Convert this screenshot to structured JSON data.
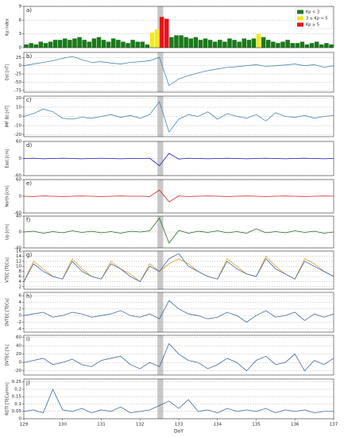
{
  "chart_data": [
    {
      "type": "bar",
      "panel_label": "a)",
      "ylabel": "Kp index",
      "xlim": [
        129,
        137
      ],
      "ylim": [
        0,
        9
      ],
      "yticks": [
        0,
        3,
        6,
        9
      ],
      "grid": true,
      "legend": "upper right",
      "highlight": [
        132.45,
        132.6
      ],
      "x": [
        129,
        129.125,
        129.25,
        129.375,
        129.5,
        129.625,
        129.75,
        129.875,
        130,
        130.125,
        130.25,
        130.375,
        130.5,
        130.625,
        130.75,
        130.875,
        131,
        131.125,
        131.25,
        131.375,
        131.5,
        131.625,
        131.75,
        131.875,
        132,
        132.125,
        132.25,
        132.375,
        132.5,
        132.625,
        132.75,
        132.875,
        133,
        133.125,
        133.25,
        133.375,
        133.5,
        133.625,
        133.75,
        133.875,
        134,
        134.125,
        134.25,
        134.375,
        134.5,
        134.625,
        134.75,
        134.875,
        135,
        135.125,
        135.25,
        135.375,
        135.5,
        135.625,
        135.75,
        135.875,
        136,
        136.125,
        136.25,
        136.375,
        136.5,
        136.625,
        136.75,
        136.875
      ],
      "series": [
        {
          "name": "Kp < 3",
          "color": "#1a7a1a",
          "values": [
            0.7,
            1,
            0.7,
            1.3,
            1,
            1.3,
            1.7,
            1.7,
            2,
            1.7,
            2,
            2.3,
            1.7,
            1.3,
            2,
            2.3,
            1.7,
            1.3,
            2,
            1.7,
            1.3,
            1,
            1.7,
            1.3,
            1.3,
            0.7,
            null,
            null,
            null,
            null,
            2.3,
            2.7,
            2.7,
            2.3,
            2,
            2.3,
            1.7,
            2,
            1.7,
            1.3,
            1.7,
            1.3,
            2,
            1.7,
            1.3,
            2,
            1.7,
            2,
            null,
            2.3,
            1.7,
            1.3,
            1,
            1.3,
            1.7,
            1,
            1,
            1.3,
            0.7,
            1,
            1.3,
            0.7,
            1,
            0.7
          ]
        },
        {
          "name": "3 ≤ Kp < 5",
          "color": "#f2ea1a",
          "values": [
            null,
            null,
            null,
            null,
            null,
            null,
            null,
            null,
            null,
            null,
            null,
            null,
            null,
            null,
            null,
            null,
            null,
            null,
            null,
            null,
            null,
            null,
            null,
            null,
            null,
            null,
            3.3,
            4,
            null,
            null,
            null,
            null,
            null,
            null,
            null,
            null,
            null,
            null,
            null,
            null,
            null,
            null,
            null,
            null,
            null,
            null,
            null,
            null,
            3,
            null,
            null,
            null,
            null,
            null,
            null,
            null,
            null,
            null,
            null,
            null,
            null,
            null,
            null,
            null
          ]
        },
        {
          "name": "Kp ≥ 5",
          "color": "#e8141a",
          "values": [
            null,
            null,
            null,
            null,
            null,
            null,
            null,
            null,
            null,
            null,
            null,
            null,
            null,
            null,
            null,
            null,
            null,
            null,
            null,
            null,
            null,
            null,
            null,
            null,
            null,
            null,
            null,
            null,
            6.7,
            6.3,
            null,
            null,
            null,
            null,
            null,
            null,
            null,
            null,
            null,
            null,
            null,
            null,
            null,
            null,
            null,
            null,
            null,
            null,
            null,
            null,
            null,
            null,
            null,
            null,
            null,
            null,
            null,
            null,
            null,
            null,
            null,
            null,
            null,
            null
          ]
        }
      ]
    },
    {
      "type": "line",
      "panel_label": "b)",
      "ylabel": "Dst [nT]",
      "xlim": [
        129,
        137
      ],
      "ylim": [
        -80,
        40
      ],
      "yticks": [
        -75,
        -50,
        -25,
        0,
        25
      ],
      "grid": true,
      "highlight": [
        132.45,
        132.6
      ],
      "color": "#4a86b8",
      "x": [
        129,
        129.25,
        129.5,
        129.75,
        130,
        130.25,
        130.5,
        130.75,
        131,
        131.25,
        131.5,
        131.75,
        132,
        132.25,
        132.5,
        132.75,
        133,
        133.25,
        133.5,
        133.75,
        134,
        134.25,
        134.5,
        134.75,
        135,
        135.25,
        135.5,
        135.75,
        136,
        136.25,
        136.5,
        136.75,
        137
      ],
      "values": [
        0,
        5,
        10,
        15,
        22,
        28,
        18,
        10,
        12,
        8,
        5,
        10,
        12,
        15,
        25,
        -60,
        -40,
        -30,
        -22,
        -15,
        -10,
        -5,
        -3,
        0,
        3,
        -2,
        0,
        2,
        5,
        0,
        3,
        -5,
        0
      ]
    },
    {
      "type": "line",
      "panel_label": "c)",
      "ylabel": "IMF Bz [nT]",
      "xlim": [
        129,
        137
      ],
      "ylim": [
        -22,
        22
      ],
      "yticks": [
        -20,
        -10,
        0,
        10,
        20
      ],
      "grid": true,
      "highlight": [
        132.45,
        132.6
      ],
      "color": "#4a86b8",
      "x": [
        129,
        129.25,
        129.5,
        129.75,
        130,
        130.25,
        130.5,
        130.75,
        131,
        131.25,
        131.5,
        131.75,
        132,
        132.25,
        132.5,
        132.75,
        133,
        133.25,
        133.5,
        133.75,
        134,
        134.25,
        134.5,
        134.75,
        135,
        135.25,
        135.5,
        135.75,
        136,
        136.25,
        136.5,
        136.75,
        137
      ],
      "values": [
        0,
        3,
        8,
        5,
        -2,
        -3,
        -1,
        -2,
        0,
        2,
        -1,
        1,
        -2,
        2,
        16,
        -17,
        -3,
        2,
        0,
        5,
        -3,
        3,
        0,
        -2,
        2,
        -5,
        4,
        0,
        -1,
        1,
        -2,
        0,
        1
      ]
    },
    {
      "type": "line",
      "panel_label": "d)",
      "ylabel": "East [cm]",
      "xlim": [
        129,
        137
      ],
      "ylim": [
        -60,
        60
      ],
      "yticks": [
        -60,
        0,
        60
      ],
      "grid": true,
      "highlight": [
        132.45,
        132.6
      ],
      "color": "#1414c0",
      "x": [
        129,
        129.25,
        129.5,
        129.75,
        130,
        130.25,
        130.5,
        130.75,
        131,
        131.25,
        131.5,
        131.75,
        132,
        132.25,
        132.5,
        132.75,
        133,
        133.25,
        133.5,
        133.75,
        134,
        134.25,
        134.5,
        134.75,
        135,
        135.25,
        135.5,
        135.75,
        136,
        136.25,
        136.5,
        136.75,
        137
      ],
      "values": [
        0,
        1,
        -1,
        0,
        1,
        0,
        -1,
        0,
        1,
        0,
        -1,
        0,
        0,
        1,
        -25,
        18,
        -2,
        1,
        0,
        -1,
        0,
        1,
        0,
        -1,
        0,
        1,
        0,
        -1,
        0,
        1,
        0,
        -1,
        0
      ]
    },
    {
      "type": "line",
      "panel_label": "e)",
      "ylabel": "North [cm]",
      "xlim": [
        129,
        137
      ],
      "ylim": [
        -60,
        60
      ],
      "yticks": [
        -60,
        0,
        60
      ],
      "grid": true,
      "highlight": [
        132.45,
        132.6
      ],
      "color": "#e02020",
      "x": [
        129,
        129.25,
        129.5,
        129.75,
        130,
        130.25,
        130.5,
        130.75,
        131,
        131.25,
        131.5,
        131.75,
        132,
        132.25,
        132.5,
        132.75,
        133,
        133.25,
        133.5,
        133.75,
        134,
        134.25,
        134.5,
        134.75,
        135,
        135.25,
        135.5,
        135.75,
        136,
        136.25,
        136.5,
        136.75,
        137
      ],
      "values": [
        0,
        -1,
        1,
        0,
        -1,
        0,
        1,
        0,
        -1,
        0,
        1,
        0,
        0,
        -1,
        22,
        -20,
        1,
        -1,
        0,
        1,
        0,
        -1,
        0,
        1,
        0,
        -1,
        0,
        1,
        0,
        -1,
        0,
        1,
        0
      ]
    },
    {
      "type": "line",
      "panel_label": "f)",
      "ylabel": "Up [cm]",
      "xlim": [
        129,
        137
      ],
      "ylim": [
        -40,
        40
      ],
      "yticks": [
        -40,
        0,
        40
      ],
      "grid": true,
      "highlight": [
        132.45,
        132.6
      ],
      "color": "#1f6e1f",
      "x": [
        129,
        129.25,
        129.5,
        129.75,
        130,
        130.25,
        130.5,
        130.75,
        131,
        131.25,
        131.5,
        131.75,
        132,
        132.25,
        132.5,
        132.75,
        133,
        133.25,
        133.5,
        133.75,
        134,
        134.25,
        134.5,
        134.75,
        135,
        135.25,
        135.5,
        135.75,
        136,
        136.25,
        136.5,
        136.75,
        137
      ],
      "values": [
        0,
        2,
        -3,
        1,
        -2,
        3,
        -1,
        2,
        -2,
        1,
        -3,
        2,
        0,
        3,
        35,
        -28,
        4,
        -3,
        2,
        -1,
        3,
        -2,
        1,
        -3,
        8,
        -2,
        1,
        -2,
        3,
        -1,
        2,
        -3,
        0
      ]
    },
    {
      "type": "line",
      "panel_label": "g)",
      "ylabel": "VTEC [TECu]",
      "xlim": [
        129,
        137
      ],
      "ylim": [
        1,
        16
      ],
      "yticks": [
        2,
        4,
        6,
        8,
        10,
        12,
        14,
        16
      ],
      "grid": true,
      "highlight": [
        132.45,
        132.6
      ],
      "x": [
        129,
        129.25,
        129.5,
        129.75,
        130,
        130.25,
        130.5,
        130.75,
        131,
        131.25,
        131.5,
        131.75,
        132,
        132.25,
        132.5,
        132.75,
        133,
        133.25,
        133.5,
        133.75,
        134,
        134.25,
        134.5,
        134.75,
        135,
        135.25,
        135.5,
        135.75,
        136,
        136.25,
        136.5,
        136.75,
        137
      ],
      "series": [
        {
          "color": "#e0a030",
          "values": [
            4,
            12,
            9,
            6,
            5,
            13,
            9,
            6,
            5,
            12,
            9,
            7,
            4,
            11,
            8,
            11,
            13,
            11,
            8,
            6,
            5,
            13,
            10,
            7,
            6,
            14,
            10,
            7,
            5,
            13,
            11,
            8,
            6
          ]
        },
        {
          "color": "#3d6aa8",
          "values": [
            4,
            11,
            8,
            6,
            5,
            12,
            8,
            6,
            5,
            11,
            9,
            6,
            4,
            10,
            8,
            13,
            15,
            10,
            8,
            6,
            5,
            12,
            9,
            7,
            6,
            13,
            9,
            7,
            5,
            12,
            10,
            8,
            6
          ]
        }
      ]
    },
    {
      "type": "line",
      "panel_label": "h)",
      "ylabel": "DVTEC [TECu]",
      "xlim": [
        129,
        137
      ],
      "ylim": [
        -5,
        7
      ],
      "yticks": [
        -4,
        -2,
        0,
        2,
        4,
        6
      ],
      "grid": true,
      "highlight": [
        132.45,
        132.6
      ],
      "color": "#3d6aa8",
      "x": [
        129,
        129.25,
        129.5,
        129.75,
        130,
        130.25,
        130.5,
        130.75,
        131,
        131.25,
        131.5,
        131.75,
        132,
        132.25,
        132.5,
        132.75,
        133,
        133.25,
        133.5,
        133.75,
        134,
        134.25,
        134.5,
        134.75,
        135,
        135.25,
        135.5,
        135.75,
        136,
        136.25,
        136.5,
        136.75,
        137
      ],
      "values": [
        0,
        0.5,
        1,
        -0.5,
        0,
        1,
        0.5,
        -0.5,
        0,
        0.5,
        1.5,
        0,
        -0.5,
        0.5,
        -1,
        4.5,
        2,
        0.5,
        0,
        -1,
        -0.5,
        1,
        0,
        -2,
        0,
        1.5,
        -0.5,
        0,
        1,
        -1.5,
        0.5,
        -0.5,
        0.5
      ]
    },
    {
      "type": "line",
      "panel_label": "i)",
      "ylabel": "DVTEC [%]",
      "xlim": [
        129,
        137
      ],
      "ylim": [
        -30,
        65
      ],
      "yticks": [
        -20,
        0,
        20,
        40,
        60
      ],
      "grid": true,
      "highlight": [
        132.45,
        132.6
      ],
      "color": "#3d6aa8",
      "x": [
        129,
        129.25,
        129.5,
        129.75,
        130,
        130.25,
        130.5,
        130.75,
        131,
        131.25,
        131.5,
        131.75,
        132,
        132.25,
        132.5,
        132.75,
        133,
        133.25,
        133.5,
        133.75,
        134,
        134.25,
        134.5,
        134.75,
        135,
        135.25,
        135.5,
        135.75,
        136,
        136.25,
        136.5,
        136.75,
        137
      ],
      "values": [
        0,
        5,
        10,
        -5,
        0,
        8,
        -5,
        -10,
        5,
        10,
        15,
        -5,
        -15,
        0,
        -10,
        45,
        20,
        5,
        0,
        -15,
        -5,
        10,
        0,
        -20,
        5,
        15,
        -5,
        0,
        20,
        -20,
        5,
        -5,
        10
      ]
    },
    {
      "type": "line",
      "panel_label": "j)",
      "ylabel": "ROTI [TECu/min]",
      "xlabel": "DoY",
      "xlim": [
        129,
        137
      ],
      "xticks": [
        129,
        130,
        131,
        132,
        133,
        134,
        135,
        136,
        137
      ],
      "ylim": [
        0,
        0.27
      ],
      "yticks": [
        0,
        0.05,
        0.1,
        0.15,
        0.2,
        0.25
      ],
      "grid": true,
      "highlight": [
        132.45,
        132.6
      ],
      "color": "#3d6aa8",
      "x": [
        129,
        129.25,
        129.5,
        129.75,
        130,
        130.25,
        130.5,
        130.75,
        131,
        131.25,
        131.5,
        131.75,
        132,
        132.25,
        132.5,
        132.75,
        133,
        133.25,
        133.5,
        133.75,
        134,
        134.25,
        134.5,
        134.75,
        135,
        135.25,
        135.5,
        135.75,
        136,
        136.25,
        136.5,
        136.75,
        137
      ],
      "values": [
        0.05,
        0.06,
        0.04,
        0.2,
        0.06,
        0.05,
        0.07,
        0.04,
        0.06,
        0.05,
        0.08,
        0.04,
        0.05,
        0.06,
        0.09,
        0.12,
        0.07,
        0.13,
        0.05,
        0.06,
        0.04,
        0.07,
        0.05,
        0.06,
        0.05,
        0.07,
        0.04,
        0.06,
        0.05,
        0.06,
        0.04,
        0.05,
        0.05
      ]
    }
  ]
}
